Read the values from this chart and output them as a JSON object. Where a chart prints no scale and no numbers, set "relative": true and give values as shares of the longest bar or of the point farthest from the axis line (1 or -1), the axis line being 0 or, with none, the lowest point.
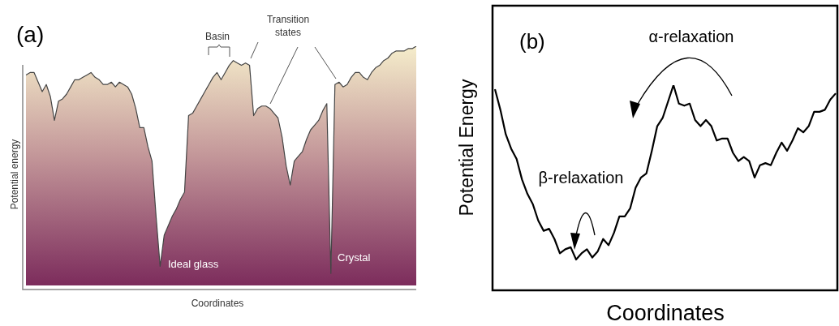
{
  "chart_data": [
    {
      "type": "area",
      "title": "(a)",
      "xlabel": "Coordinates",
      "ylabel": "Potential energy",
      "relative": true,
      "marker": "none",
      "color": "#444444",
      "annotations": [
        "Basin",
        "Transition states",
        "Ideal glass",
        "Crystal"
      ],
      "categories": [
        null,
        null,
        null,
        null,
        null,
        null,
        null,
        null,
        null,
        null,
        null,
        null,
        null,
        null,
        null,
        null,
        null,
        null,
        null,
        null,
        null,
        null,
        null,
        null,
        null,
        null,
        null,
        null,
        null,
        null,
        null,
        null,
        null,
        null,
        null,
        null,
        null,
        null,
        null,
        null,
        null,
        null,
        null,
        null,
        null,
        null,
        null,
        null,
        null,
        null,
        null,
        null,
        null,
        null,
        null,
        null,
        null,
        null,
        null,
        null,
        null,
        null,
        null,
        null,
        null,
        null,
        null,
        null,
        null,
        null,
        null,
        null,
        null,
        null,
        null,
        null,
        null,
        null,
        null,
        null,
        null,
        null,
        null,
        null,
        null,
        null,
        null,
        null,
        null,
        null,
        null,
        null,
        null,
        null,
        null,
        null,
        null
      ],
      "values": [
        0.88,
        0.89,
        0.89,
        0.85,
        0.81,
        0.84,
        0.79,
        0.69,
        0.77,
        0.78,
        0.8,
        0.83,
        0.86,
        0.86,
        0.87,
        0.88,
        0.89,
        0.87,
        0.86,
        0.84,
        0.84,
        0.85,
        0.83,
        0.85,
        0.84,
        0.83,
        0.8,
        0.74,
        0.66,
        0.66,
        0.58,
        0.52,
        0.29,
        0.08,
        0.21,
        0.25,
        0.29,
        0.32,
        0.36,
        0.39,
        0.71,
        0.72,
        0.75,
        0.78,
        0.81,
        0.84,
        0.87,
        0.89,
        0.86,
        0.89,
        0.92,
        0.94,
        0.93,
        0.92,
        0.93,
        0.92,
        0.71,
        0.74,
        0.75,
        0.75,
        0.74,
        0.72,
        0.7,
        0.62,
        0.5,
        0.42,
        0.52,
        0.54,
        0.56,
        0.61,
        0.65,
        0.67,
        0.69,
        0.73,
        0.76,
        0.05,
        0.84,
        0.85,
        0.83,
        0.84,
        0.87,
        0.89,
        0.89,
        0.87,
        0.86,
        0.89,
        0.91,
        0.92,
        0.94,
        0.95,
        0.97,
        0.98,
        0.98,
        0.98,
        0.99,
        0.99,
        1.0
      ]
    },
    {
      "type": "line",
      "title": "(b)",
      "xlabel": "Coordinates",
      "ylabel": "Potential Energy",
      "relative": true,
      "marker": "none",
      "color": "#000000",
      "annotations": [
        "α-relaxation",
        "β-relaxation"
      ],
      "categories": [
        null,
        null,
        null,
        null,
        null,
        null,
        null,
        null,
        null,
        null,
        null,
        null,
        null,
        null,
        null,
        null,
        null,
        null,
        null,
        null,
        null,
        null,
        null,
        null,
        null,
        null,
        null,
        null,
        null,
        null,
        null,
        null,
        null,
        null,
        null,
        null,
        null,
        null,
        null,
        null,
        null,
        null,
        null,
        null,
        null,
        null,
        null,
        null,
        null,
        null,
        null,
        null,
        null,
        null,
        null,
        null,
        null,
        null,
        null,
        null,
        null,
        null,
        null,
        null
      ],
      "values": [
        0.98,
        0.88,
        0.76,
        0.69,
        0.64,
        0.54,
        0.47,
        0.42,
        0.34,
        0.29,
        0.3,
        0.25,
        0.18,
        0.2,
        0.21,
        0.15,
        0.18,
        0.2,
        0.16,
        0.19,
        0.25,
        0.22,
        0.28,
        0.36,
        0.36,
        0.4,
        0.5,
        0.55,
        0.57,
        0.68,
        0.8,
        0.84,
        0.92,
        1.0,
        0.91,
        0.9,
        0.91,
        0.83,
        0.8,
        0.83,
        0.8,
        0.73,
        0.74,
        0.74,
        0.67,
        0.63,
        0.65,
        0.63,
        0.55,
        0.61,
        0.62,
        0.61,
        0.67,
        0.72,
        0.68,
        0.73,
        0.79,
        0.77,
        0.8,
        0.87,
        0.87,
        0.88,
        0.93,
        0.96
      ]
    }
  ]
}
